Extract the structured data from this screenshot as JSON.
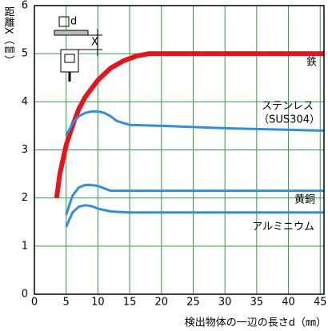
{
  "chart_data": {
    "type": "line",
    "y_label": "距離X（㎜）",
    "x_label": "検出物体の一辺の長さd（㎜）",
    "xlim": [
      0,
      45.6
    ],
    "ylim": [
      0,
      6
    ],
    "xticks": [
      0,
      5,
      10,
      15,
      20,
      25,
      30,
      35,
      40,
      45
    ],
    "yticks": [
      0,
      1,
      2,
      3,
      4,
      5,
      6
    ],
    "grid": true,
    "grid_color": "#2e9e3e",
    "series": [
      {
        "name": "鉄",
        "color": "#e8141b",
        "x": [
          3.5,
          4,
          5,
          6,
          7,
          8,
          10,
          12,
          14,
          16,
          18,
          45.6
        ],
        "values": [
          2.0,
          2.5,
          3.1,
          3.5,
          3.85,
          4.1,
          4.45,
          4.7,
          4.85,
          4.95,
          5.0,
          5.0
        ]
      },
      {
        "name": "ステンレス",
        "color": "#2f8fdf",
        "x": [
          5,
          6,
          7,
          8,
          9,
          10,
          11,
          12,
          13,
          15,
          20,
          30,
          45.6
        ],
        "values": [
          3.3,
          3.55,
          3.7,
          3.77,
          3.8,
          3.8,
          3.77,
          3.7,
          3.6,
          3.52,
          3.5,
          3.45,
          3.4
        ]
      },
      {
        "name": "黄銅",
        "color": "#2f8fdf",
        "x": [
          5,
          6,
          7,
          8,
          9,
          10,
          11,
          12,
          15,
          45.6
        ],
        "values": [
          1.65,
          2.05,
          2.22,
          2.27,
          2.27,
          2.25,
          2.2,
          2.15,
          2.15,
          2.15
        ]
      },
      {
        "name": "アルミニウム",
        "color": "#2f8fdf",
        "x": [
          5,
          6,
          7,
          8,
          9,
          10,
          12,
          15,
          45.6
        ],
        "values": [
          1.4,
          1.7,
          1.82,
          1.85,
          1.83,
          1.78,
          1.72,
          1.7,
          1.7
        ]
      }
    ],
    "annotations": [
      {
        "text": "（SUS304）"
      }
    ],
    "inset": {
      "d_label": "d",
      "x_label": "X"
    }
  }
}
